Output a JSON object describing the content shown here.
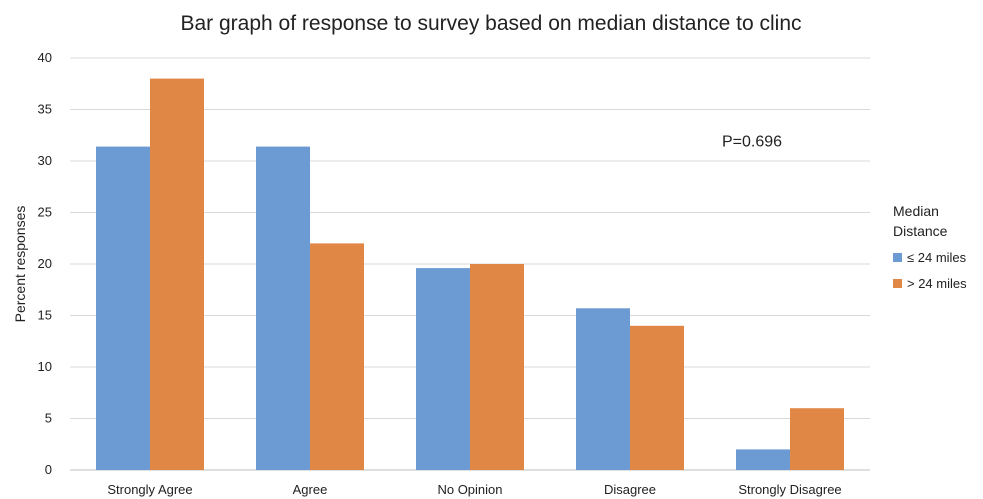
{
  "chart_data": {
    "type": "bar",
    "title": "Bar graph of response to survey based on median distance to clinc",
    "xlabel": "",
    "ylabel": "Percent responses",
    "ylim": [
      0,
      40
    ],
    "yticks": [
      0,
      5,
      10,
      15,
      20,
      25,
      30,
      35,
      40
    ],
    "grid": true,
    "legend_position": "right",
    "legend_title": [
      "Median",
      "Distance"
    ],
    "categories": [
      "Strongly Agree",
      "Agree",
      "No Opinion",
      "Disagree",
      "Strongly Disagree"
    ],
    "series": [
      {
        "name": "≤ 24 miles",
        "color": "#6b9bd2",
        "values": [
          31.4,
          31.4,
          19.6,
          15.7,
          2.0
        ]
      },
      {
        "name": "> 24 miles",
        "color": "#e08745",
        "values": [
          38.0,
          22.0,
          20.0,
          14.0,
          6.0
        ]
      }
    ],
    "annotations": [
      {
        "text": "P=0.696",
        "x_category": "Disagree",
        "y": 32
      }
    ]
  }
}
